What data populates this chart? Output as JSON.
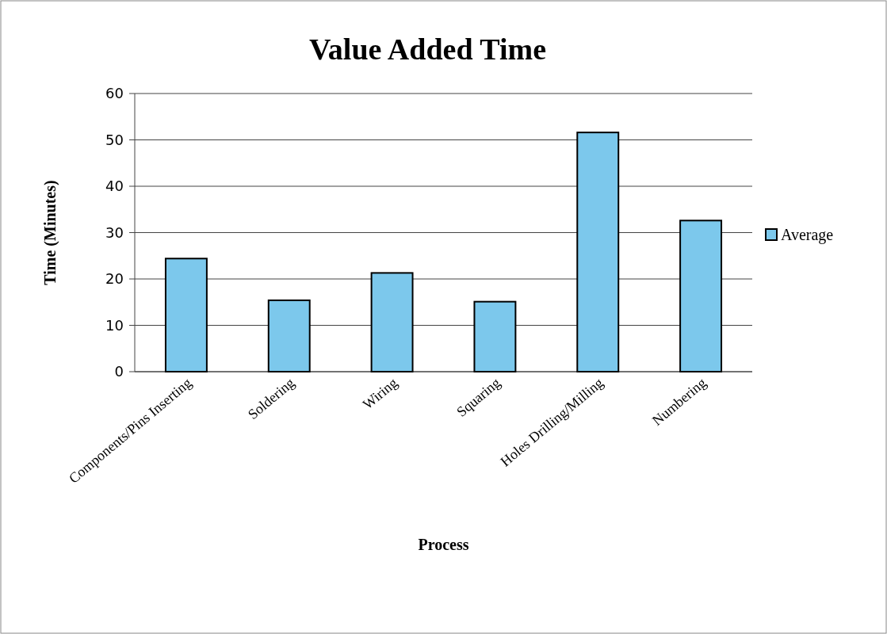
{
  "chart_data": {
    "type": "bar",
    "title": "Value Added Time",
    "xlabel": "Process",
    "ylabel": "Time (Minutes)",
    "categories": [
      "Components/Pins Inserting",
      "Soldering",
      "Wiring",
      "Squaring",
      "Holes Drilling/Milling",
      "Numbering"
    ],
    "series": [
      {
        "name": "Average",
        "color": "#7cc8ec",
        "values": [
          24.4,
          15.4,
          21.3,
          15.1,
          51.6,
          32.6
        ]
      }
    ],
    "ylim": [
      0,
      60
    ],
    "yticks": [
      0,
      10,
      20,
      30,
      40,
      50,
      60
    ],
    "grid": "y",
    "legend": "right"
  }
}
